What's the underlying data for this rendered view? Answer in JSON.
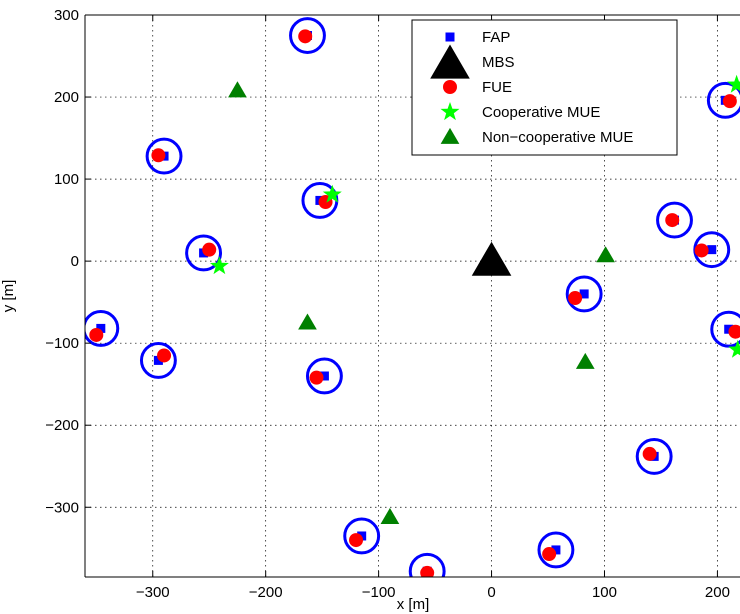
{
  "chart_data": {
    "type": "scatter",
    "title": "",
    "xlabel": "x [m]",
    "ylabel": "y [m]",
    "xlim": [
      -360,
      220
    ],
    "ylim": [
      -385,
      300
    ],
    "xticks": [
      -300,
      -200,
      -100,
      0,
      100,
      200
    ],
    "yticks": [
      300,
      200,
      100,
      0,
      -100,
      -200,
      -300
    ],
    "xtick_labels": [
      "−300",
      "−200",
      "−100",
      "0",
      "100",
      "200"
    ],
    "ytick_labels": [
      "300",
      "200",
      "100",
      "0",
      "−100",
      "−200",
      "−300"
    ],
    "grid": true,
    "legend_position": "top-right",
    "legend": [
      {
        "label": "FAP",
        "marker": "square",
        "color": "#0000ff"
      },
      {
        "label": "MBS",
        "marker": "triangle-large",
        "color": "#000000"
      },
      {
        "label": "FUE",
        "marker": "circle",
        "color": "#ff0000"
      },
      {
        "label": "Cooperative MUE",
        "marker": "star",
        "color": "#00ff00"
      },
      {
        "label": "Non−cooperative MUE",
        "marker": "triangle",
        "color": "#008000"
      }
    ],
    "coverage_circle_color": "#0000ff",
    "coverage_radius": 15,
    "series": [
      {
        "name": "FAP",
        "points": [
          [
            -163,
            275
          ],
          [
            -290,
            128
          ],
          [
            -152,
            74
          ],
          [
            -255,
            10
          ],
          [
            -346,
            -82
          ],
          [
            -295,
            -121
          ],
          [
            -148,
            -140
          ],
          [
            -115,
            -335
          ],
          [
            -57,
            -378
          ],
          [
            82,
            -40
          ],
          [
            57,
            -352
          ],
          [
            144,
            -238
          ],
          [
            162,
            50
          ],
          [
            195,
            14
          ],
          [
            207,
            196
          ],
          [
            210,
            -83
          ]
        ]
      },
      {
        "name": "MBS",
        "points": [
          [
            0,
            0
          ]
        ]
      },
      {
        "name": "FUE",
        "points": [
          [
            -165,
            274
          ],
          [
            -295,
            129
          ],
          [
            -147,
            72
          ],
          [
            -250,
            14
          ],
          [
            -350,
            -90
          ],
          [
            -290,
            -115
          ],
          [
            -155,
            -142
          ],
          [
            -120,
            -340
          ],
          [
            -57,
            -380
          ],
          [
            74,
            -45
          ],
          [
            51,
            -357
          ],
          [
            140,
            -235
          ],
          [
            160,
            50
          ],
          [
            186,
            13
          ],
          [
            211,
            195
          ],
          [
            216,
            -86
          ]
        ]
      },
      {
        "name": "Cooperative MUE",
        "points": [
          [
            -141,
            81
          ],
          [
            -241,
            -6
          ],
          [
            217,
            215
          ],
          [
            218,
            -108
          ]
        ]
      },
      {
        "name": "Non−cooperative MUE",
        "points": [
          [
            -225,
            208
          ],
          [
            -163,
            -75
          ],
          [
            -90,
            -312
          ],
          [
            83,
            -123
          ],
          [
            101,
            7
          ]
        ]
      }
    ]
  }
}
